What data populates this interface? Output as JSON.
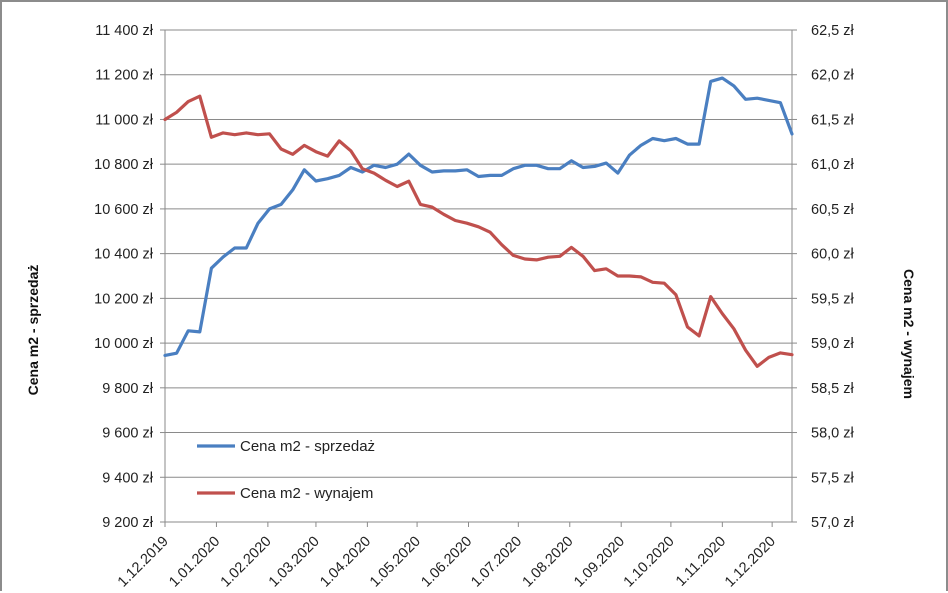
{
  "chart_data": {
    "type": "line",
    "x": [
      "1.12.2019",
      "8.12.2019",
      "15.12.2019",
      "22.12.2019",
      "29.12.2019",
      "5.01.2020",
      "12.01.2020",
      "19.01.2020",
      "26.01.2020",
      "2.02.2020",
      "9.02.2020",
      "16.02.2020",
      "23.02.2020",
      "1.03.2020",
      "8.03.2020",
      "15.03.2020",
      "22.03.2020",
      "29.03.2020",
      "5.04.2020",
      "12.04.2020",
      "19.04.2020",
      "26.04.2020",
      "3.05.2020",
      "10.05.2020",
      "17.05.2020",
      "24.05.2020",
      "31.05.2020",
      "7.06.2020",
      "14.06.2020",
      "21.06.2020",
      "28.06.2020",
      "5.07.2020",
      "12.07.2020",
      "19.07.2020",
      "26.07.2020",
      "2.08.2020",
      "9.08.2020",
      "16.08.2020",
      "23.08.2020",
      "30.08.2020",
      "6.09.2020",
      "13.09.2020",
      "20.09.2020",
      "27.09.2020",
      "4.10.2020",
      "11.10.2020",
      "18.10.2020",
      "25.10.2020",
      "1.11.2020",
      "8.11.2020",
      "15.11.2020",
      "22.11.2020",
      "29.11.2020",
      "6.12.2020",
      "13.12.2020"
    ],
    "x_tick_labels": [
      "1.12.2019",
      "1.01.2020",
      "1.02.2020",
      "1.03.2020",
      "1.04.2020",
      "1.05.2020",
      "1.06.2020",
      "1.07.2020",
      "1.08.2020",
      "1.09.2020",
      "1.10.2020",
      "1.11.2020",
      "1.12.2020"
    ],
    "x_tick_index": [
      0,
      4.43,
      8.86,
      13.0,
      17.43,
      21.71,
      26.14,
      30.43,
      34.86,
      39.29,
      43.57,
      48.0,
      52.29
    ],
    "series": [
      {
        "name": "Cena m2 - sprzedaż",
        "axis": "left",
        "color": "#4a7fc1",
        "values": [
          9945,
          9955,
          10055,
          10050,
          10335,
          10385,
          10425,
          10425,
          10535,
          10600,
          10620,
          10685,
          10775,
          10725,
          10735,
          10750,
          10785,
          10765,
          10795,
          10785,
          10800,
          10845,
          10795,
          10765,
          10770,
          10770,
          10775,
          10745,
          10750,
          10750,
          10780,
          10795,
          10795,
          10780,
          10780,
          10815,
          10785,
          10790,
          10805,
          10760,
          10840,
          10885,
          10915,
          10905,
          10915,
          10890,
          10890,
          11170,
          11185,
          11150,
          11090,
          11095,
          11085,
          11075,
          10935
        ]
      },
      {
        "name": "Cena m2 - wynajem",
        "axis": "right",
        "color": "#c0504d",
        "values": [
          61.5,
          61.58,
          61.7,
          61.76,
          61.3,
          61.35,
          61.33,
          61.35,
          61.33,
          61.34,
          61.17,
          61.11,
          61.21,
          61.14,
          61.09,
          61.26,
          61.15,
          60.95,
          60.9,
          60.82,
          60.75,
          60.81,
          60.55,
          60.52,
          60.44,
          60.37,
          60.34,
          60.3,
          60.24,
          60.1,
          59.98,
          59.94,
          59.93,
          59.96,
          59.97,
          60.07,
          59.97,
          59.81,
          59.83,
          59.75,
          59.75,
          59.74,
          59.68,
          59.67,
          59.54,
          59.18,
          59.08,
          59.52,
          59.33,
          59.16,
          58.92,
          58.74,
          58.84,
          58.89,
          58.87
        ]
      }
    ],
    "y_left": {
      "label": "Cena m2  - sprzedaż",
      "ylim": [
        9200,
        11400
      ],
      "ticks": [
        9200,
        9400,
        9600,
        9800,
        10000,
        10200,
        10400,
        10600,
        10800,
        11000,
        11200,
        11400
      ],
      "tick_labels": [
        "9 200 zł",
        "9 400 zł",
        "9 600 zł",
        "9 800 zł",
        "10 000 zł",
        "10 200 zł",
        "10 400 zł",
        "10 600 zł",
        "10 800 zł",
        "11 000 zł",
        "11 200 zł",
        "11 400 zł"
      ]
    },
    "y_right": {
      "label": "Cena m2  - wynajem",
      "ylim": [
        57.0,
        62.5
      ],
      "ticks": [
        57.0,
        57.5,
        58.0,
        58.5,
        59.0,
        59.5,
        60.0,
        60.5,
        61.0,
        61.5,
        62.0,
        62.5
      ],
      "tick_labels": [
        "57,0 zł",
        "57,5 zł",
        "58,0 zł",
        "58,5 zł",
        "59,0 zł",
        "59,5 zł",
        "60,0 zł",
        "60,5 zł",
        "61,0 zł",
        "61,5 zł",
        "62,0 zł",
        "62,5 zł"
      ]
    },
    "grid": true,
    "legend_position": "bottom-left"
  }
}
